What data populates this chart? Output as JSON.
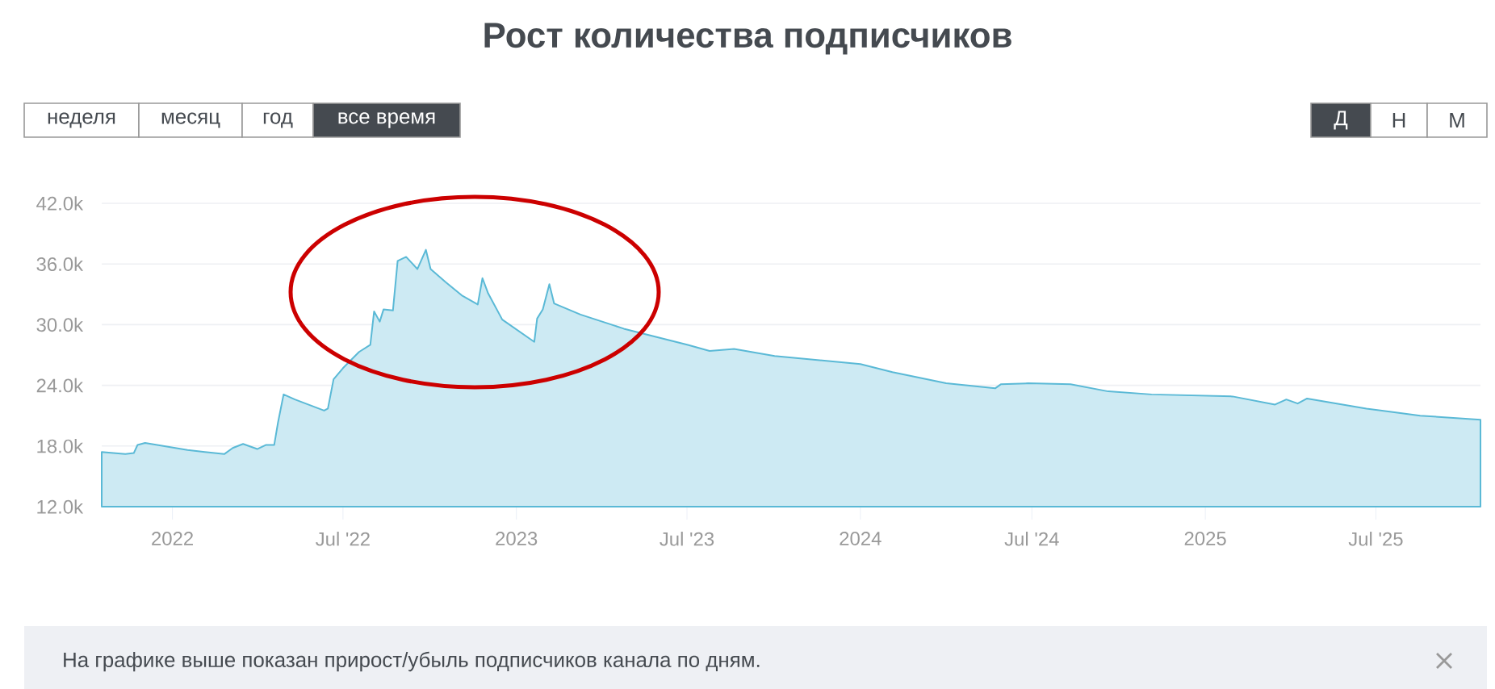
{
  "chart_data": {
    "type": "area",
    "title": "Рост количества подписчиков",
    "annotations": [
      "неделя",
      "месяц",
      "год",
      "все время",
      "Д",
      "Н",
      "М",
      "На графике выше показан прирост/убыль подписчиков канала по дням."
    ],
    "x": [
      "2021-10-18",
      "2021-11-12",
      "2021-11-21",
      "2021-11-25",
      "2021-12-03",
      "2022-01-17",
      "2022-02-25",
      "2022-03-06",
      "2022-03-17",
      "2022-04-01",
      "2022-04-10",
      "2022-04-19",
      "2022-04-23",
      "2022-04-29",
      "2022-05-11",
      "2022-06-11",
      "2022-06-15",
      "2022-06-21",
      "2022-07-01",
      "2022-07-18",
      "2022-07-30",
      "2022-08-03",
      "2022-08-09",
      "2022-08-13",
      "2022-08-23",
      "2022-08-28",
      "2022-09-06",
      "2022-09-11",
      "2022-09-18",
      "2022-09-27",
      "2022-10-02",
      "2022-10-18",
      "2022-11-04",
      "2022-11-21",
      "2022-11-26",
      "2022-12-02",
      "2022-12-17",
      "2023-01-20",
      "2023-01-23",
      "2023-01-29",
      "2023-02-05",
      "2023-02-10",
      "2023-03-10",
      "2023-04-25",
      "2023-07-02",
      "2023-07-25",
      "2023-08-20",
      "2023-10-02",
      "2024-01-01",
      "2024-02-04",
      "2024-04-01",
      "2024-05-23",
      "2024-05-29",
      "2024-06-27",
      "2024-08-11",
      "2024-09-20",
      "2024-11-05",
      "2025-01-30",
      "2025-03-16",
      "2025-03-28",
      "2025-04-09",
      "2025-04-19",
      "2025-06-21",
      "2025-08-17",
      "2025-10-20"
    ],
    "series": [
      {
        "color": "#5ab9d6",
        "values": [
          17400,
          17200,
          17300,
          18100,
          18300,
          17600,
          17200,
          17800,
          18200,
          17700,
          18100,
          18100,
          20300,
          23100,
          22600,
          21500,
          21700,
          24600,
          25700,
          27300,
          28000,
          31300,
          30300,
          31500,
          31400,
          36300,
          36700,
          36200,
          35500,
          37400,
          35500,
          34200,
          32900,
          32000,
          34600,
          33100,
          30500,
          28300,
          30600,
          31500,
          34000,
          32100,
          31000,
          29600,
          28000,
          27400,
          27600,
          26900,
          26100,
          25300,
          24200,
          23700,
          24100,
          24200,
          24100,
          23400,
          23100,
          22900,
          22100,
          22600,
          22200,
          22700,
          21700,
          21000,
          20600
        ]
      }
    ],
    "xlim": [
      "2021-10-18",
      "2025-10-20"
    ],
    "xticks": [
      {
        "value": "2022-01-01",
        "label": "2022"
      },
      {
        "value": "2022-07-01",
        "label": "Jul '22"
      },
      {
        "value": "2023-01-01",
        "label": "2023"
      },
      {
        "value": "2023-07-01",
        "label": "Jul '23"
      },
      {
        "value": "2024-01-01",
        "label": "2024"
      },
      {
        "value": "2024-07-01",
        "label": "Jul '24"
      },
      {
        "value": "2025-01-01",
        "label": "2025"
      },
      {
        "value": "2025-07-01",
        "label": "Jul '25"
      }
    ],
    "ylim": [
      12000,
      42000
    ],
    "yticks": [
      {
        "value": 12000,
        "label": "12.0k"
      },
      {
        "value": 18000,
        "label": "18.0k"
      },
      {
        "value": 24000,
        "label": "24.0k"
      },
      {
        "value": 30000,
        "label": "30.0k"
      },
      {
        "value": 36000,
        "label": "36.0k"
      },
      {
        "value": 42000,
        "label": "42.0k"
      }
    ],
    "grid": "y"
  }
}
